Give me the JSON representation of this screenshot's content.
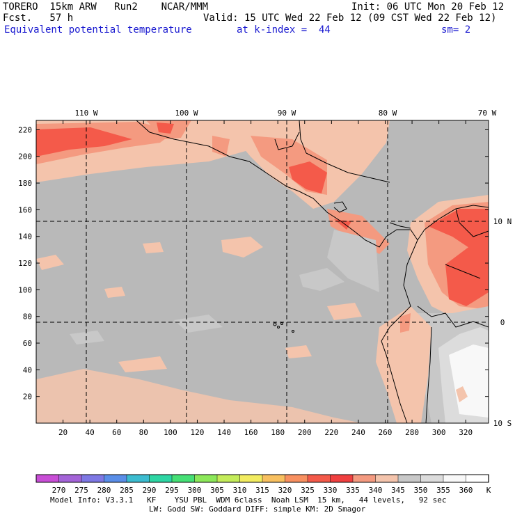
{
  "header": {
    "model": "TORERO  15km ARW   Run2    NCAR/MMM",
    "forecast": "Fcst.   57 h",
    "init": "Init: 06 UTC Mon 20 Feb 12",
    "valid": "Valid: 15 UTC Wed 22 Feb 12 (09 CST Wed 22 Feb 12)",
    "field": "Equivalent potential temperature",
    "level": "at k-index =  44",
    "smooth": "sm= 2"
  },
  "map": {
    "top_lon_labels": [
      "110 W",
      "100 W",
      "90 W",
      "80 W",
      "70 W"
    ],
    "right_lat_labels": [
      "10 N",
      "0",
      "10 S"
    ],
    "y_ticks": [
      20,
      40,
      60,
      80,
      100,
      120,
      140,
      160,
      180,
      200,
      220
    ],
    "x_ticks": [
      20,
      40,
      60,
      80,
      100,
      120,
      140,
      160,
      180,
      200,
      220,
      240,
      260,
      280,
      300,
      320
    ],
    "grid_i": [
      100,
      250,
      400,
      550
    ],
    "grid_j": [
      75,
      150
    ],
    "ocean_color": "#b9b9b9"
  },
  "legend": {
    "values": [
      "270",
      "275",
      "280",
      "285",
      "290",
      "295",
      "300",
      "305",
      "310",
      "315",
      "320",
      "325",
      "330",
      "335",
      "340",
      "345",
      "350",
      "355",
      "360"
    ],
    "unit": "K",
    "colors": [
      "#c84ed6",
      "#a464d8",
      "#7e78e4",
      "#5a8ee8",
      "#3cbcd0",
      "#2ed6a4",
      "#46e076",
      "#8ce85a",
      "#c4ec5a",
      "#f2ec60",
      "#f8c060",
      "#f89060",
      "#f45a4a",
      "#f04040",
      "#f49a80",
      "#f4c4ac",
      "#c8c8c8",
      "#dcdcdc",
      "#f8f8f8",
      "#ffffff"
    ]
  },
  "footer": {
    "line1": "Model Info: V3.3.1   KF    YSU PBL  WDM 6class  Noah LSM  15 km,   44 levels,   92 sec",
    "line2": "LW: Godd SW: Goddard DIFF: simple KM: 2D Smagor"
  }
}
